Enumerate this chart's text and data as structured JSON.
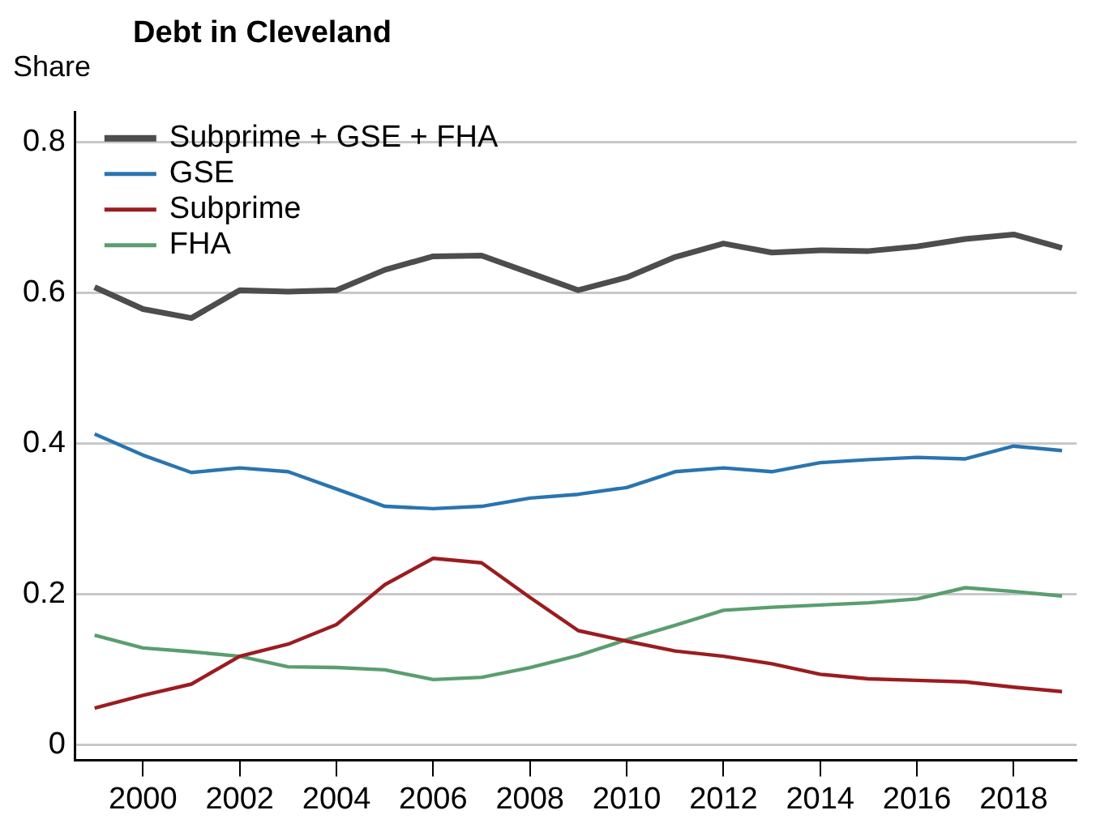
{
  "chart_data": {
    "type": "line",
    "title": "Debt in Cleveland",
    "ylabel": "Share",
    "x": [
      1999,
      2000,
      2001,
      2002,
      2003,
      2004,
      2005,
      2006,
      2007,
      2008,
      2009,
      2010,
      2011,
      2012,
      2013,
      2014,
      2015,
      2016,
      2017,
      2018,
      2019
    ],
    "xlim": [
      1998.6,
      2019.3
    ],
    "xticks": [
      2000,
      2002,
      2004,
      2006,
      2008,
      2010,
      2012,
      2014,
      2016,
      2018
    ],
    "ylim": [
      -0.02,
      0.84
    ],
    "yticks": [
      0,
      0.2,
      0.4,
      0.6,
      0.8
    ],
    "grid": "y",
    "legend": "top left",
    "marker": "none",
    "line_style": "solid",
    "series": [
      {
        "name": "Subprime + GSE + FHA",
        "color": "#4d4d4d",
        "values": [
          0.608,
          0.579,
          0.567,
          0.604,
          0.602,
          0.604,
          0.631,
          0.649,
          0.65,
          0.627,
          0.604,
          0.621,
          0.648,
          0.666,
          0.654,
          0.657,
          0.656,
          0.662,
          0.672,
          0.678,
          0.66
        ]
      },
      {
        "name": "GSE",
        "color": "#2a74b0",
        "values": [
          0.413,
          0.385,
          0.362,
          0.368,
          0.363,
          0.34,
          0.317,
          0.314,
          0.317,
          0.328,
          0.333,
          0.342,
          0.363,
          0.368,
          0.363,
          0.375,
          0.379,
          0.382,
          0.38,
          0.397,
          0.391
        ]
      },
      {
        "name": "Subprime",
        "color": "#9b1c20",
        "values": [
          0.049,
          0.066,
          0.081,
          0.118,
          0.134,
          0.16,
          0.213,
          0.248,
          0.242,
          0.196,
          0.152,
          0.138,
          0.125,
          0.118,
          0.108,
          0.094,
          0.088,
          0.086,
          0.084,
          0.077,
          0.071
        ]
      },
      {
        "name": "FHA",
        "color": "#5a9e6f",
        "values": [
          0.146,
          0.129,
          0.124,
          0.118,
          0.104,
          0.103,
          0.1,
          0.087,
          0.09,
          0.103,
          0.119,
          0.14,
          0.159,
          0.179,
          0.183,
          0.186,
          0.189,
          0.194,
          0.209,
          0.204,
          0.198
        ]
      }
    ]
  }
}
